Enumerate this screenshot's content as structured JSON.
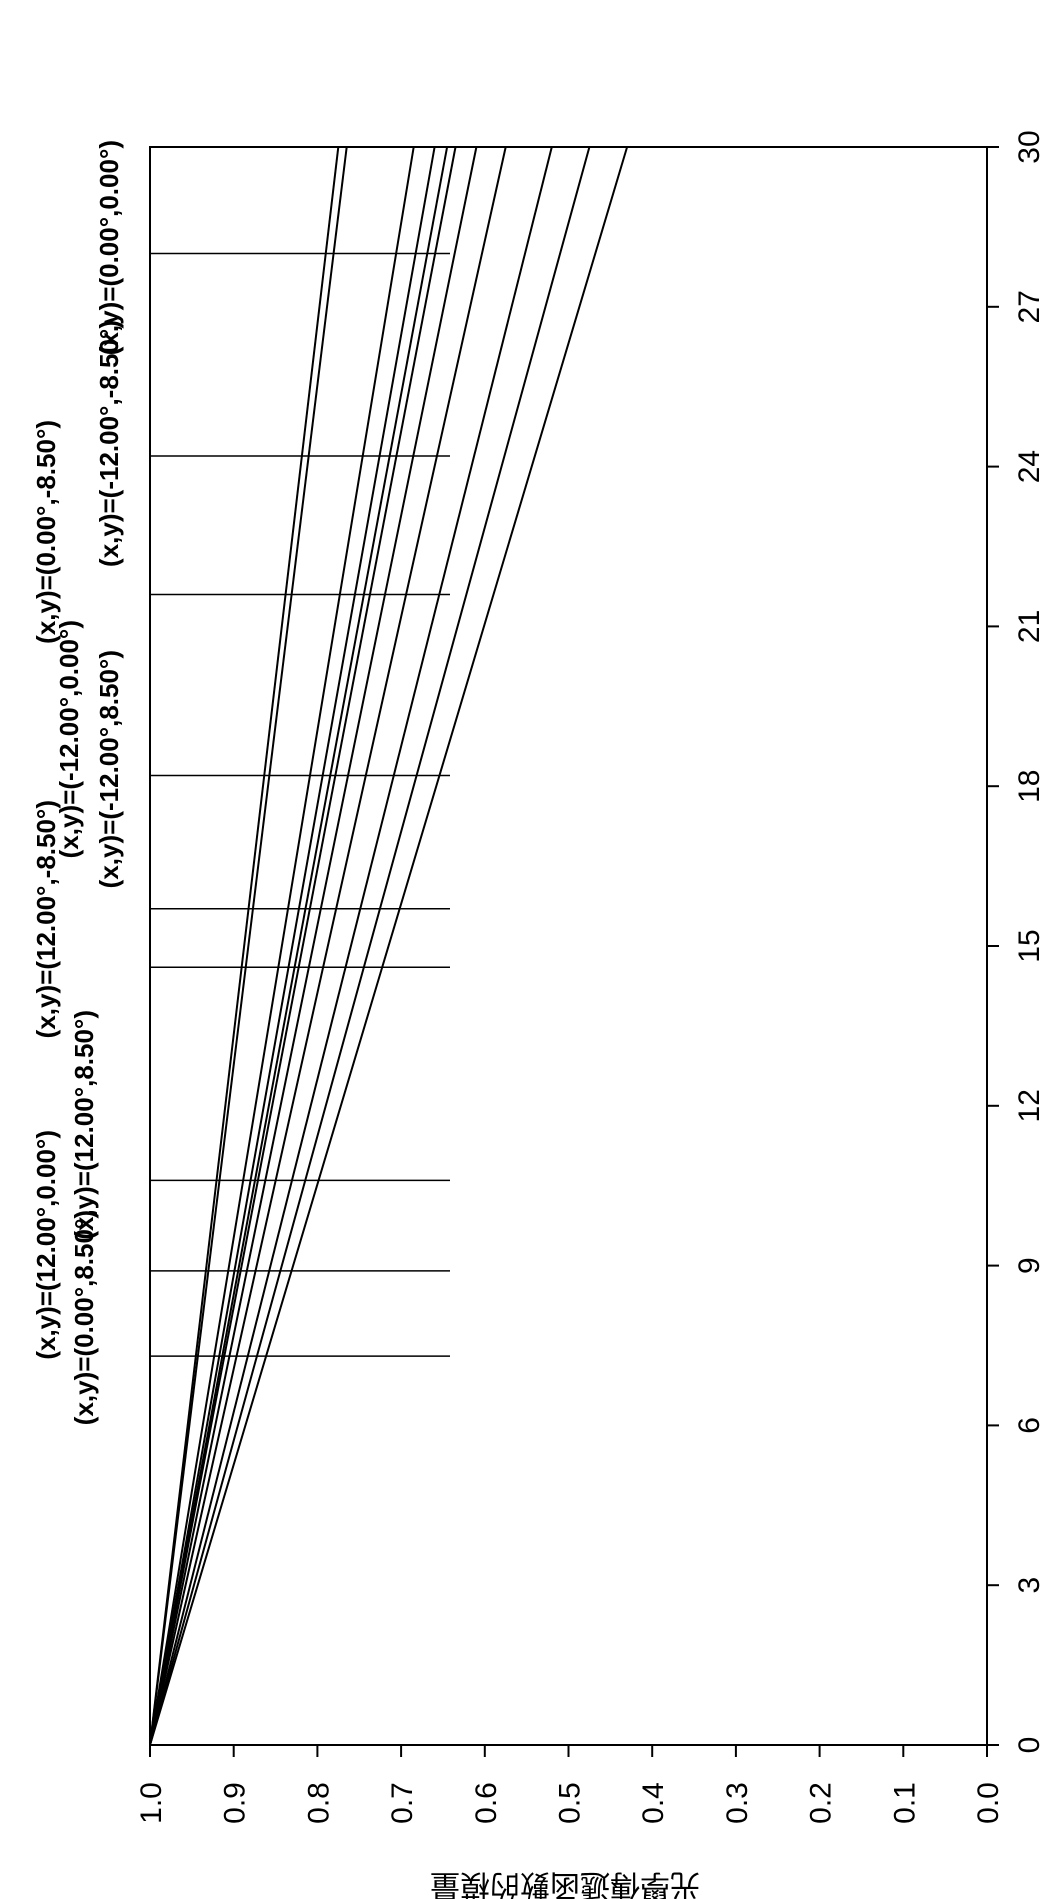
{
  "chart_data": {
    "type": "line",
    "title": "",
    "xlabel": "",
    "ylabel": "光學傳遞函數的模量",
    "xlim": [
      0,
      30
    ],
    "ylim": [
      0.0,
      1.0
    ],
    "x_ticks": [
      "0",
      "3",
      "6",
      "9",
      "12",
      "15",
      "18",
      "21",
      "24",
      "27",
      "30"
    ],
    "y_ticks": [
      "0.0",
      "0.1",
      "0.2",
      "0.3",
      "0.4",
      "0.5",
      "0.6",
      "0.7",
      "0.8",
      "0.9",
      "1.0"
    ],
    "grid": false,
    "orientation": "rotated 90° clockwise",
    "series": [
      {
        "values": [
          [
            0,
            1.0
          ],
          [
            30,
            0.775
          ]
        ]
      },
      {
        "values": [
          [
            0,
            1.0
          ],
          [
            30,
            0.765
          ]
        ]
      },
      {
        "values": [
          [
            0,
            1.0
          ],
          [
            30,
            0.685
          ]
        ]
      },
      {
        "values": [
          [
            0,
            1.0
          ],
          [
            30,
            0.66
          ]
        ]
      },
      {
        "values": [
          [
            0,
            1.0
          ],
          [
            30,
            0.645
          ]
        ]
      },
      {
        "values": [
          [
            0,
            1.0
          ],
          [
            30,
            0.635
          ]
        ]
      },
      {
        "values": [
          [
            0,
            1.0
          ],
          [
            30,
            0.61
          ]
        ]
      },
      {
        "values": [
          [
            0,
            1.0
          ],
          [
            30,
            0.575
          ]
        ]
      },
      {
        "values": [
          [
            0,
            1.0
          ],
          [
            30,
            0.52
          ]
        ]
      },
      {
        "values": [
          [
            0,
            1.0
          ],
          [
            30,
            0.475
          ]
        ]
      },
      {
        "values": [
          [
            0,
            1.0
          ],
          [
            30,
            0.43
          ]
        ]
      }
    ],
    "annotations": [
      {
        "text": "(x,y)=(0.00°,0.00°)",
        "x": 28.0
      },
      {
        "text": "(x,y)=(-12.00°,-8.50°)",
        "x": 24.2
      },
      {
        "text": "(x,y)=(0.00°,-8.50°)",
        "x": 21.6
      },
      {
        "text": "(x,y)=(-12.00°,0.00°)",
        "x": 18.2
      },
      {
        "text": "(x,y)=(-12.00°,8.50°)",
        "x": 15.7
      },
      {
        "text": "(x,y)=(12.00°,-8.50°)",
        "x": 14.6
      },
      {
        "text": "(x,y)=(12.00°,8.50°)",
        "x": 10.6
      },
      {
        "text": "(x,y)=(12.00°,0.00°)",
        "x": 8.9
      },
      {
        "text": "(x,y)=(0.00°,8.50°)",
        "x": 7.3
      }
    ]
  }
}
